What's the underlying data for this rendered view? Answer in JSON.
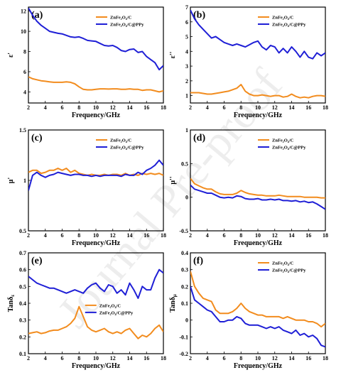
{
  "watermark_text": "Journal Pre-proof",
  "series_colors": {
    "orange": "#f28c1e",
    "blue": "#1f1fd6"
  },
  "chart_data": [
    {
      "type": "line",
      "panel_label": "(a)",
      "xlabel": "Frequency/GHz",
      "ylabel": "ε'",
      "xlim": [
        2,
        18
      ],
      "ylim": [
        2.9,
        12.4
      ],
      "xticks": [
        2,
        4,
        6,
        8,
        10,
        12,
        14,
        16,
        18
      ],
      "yticks": [
        4,
        6,
        8,
        10,
        12
      ],
      "legend_position": "top-right",
      "series": [
        {
          "name": "ZnFe₂O₄/C",
          "color": "#f28c1e",
          "x": [
            2.0,
            2.5,
            3.0,
            3.5,
            4.0,
            4.5,
            5.0,
            5.5,
            6.0,
            6.5,
            7.0,
            7.5,
            8.0,
            8.5,
            9.0,
            9.5,
            10.0,
            10.5,
            11.0,
            11.5,
            12.0,
            12.5,
            13.0,
            13.5,
            14.0,
            14.5,
            15.0,
            15.5,
            16.0,
            16.5,
            17.0,
            17.5,
            18.0
          ],
          "y": [
            5.5,
            5.3,
            5.2,
            5.1,
            5.05,
            5.0,
            4.95,
            4.95,
            4.95,
            5.0,
            4.95,
            4.8,
            4.5,
            4.25,
            4.2,
            4.2,
            4.25,
            4.3,
            4.3,
            4.28,
            4.3,
            4.3,
            4.25,
            4.25,
            4.3,
            4.25,
            4.25,
            4.15,
            4.2,
            4.2,
            4.1,
            4.0,
            4.1
          ]
        },
        {
          "name": "ZnFe₂O₄/C@PPy",
          "color": "#1f1fd6",
          "x": [
            2.0,
            2.5,
            3.0,
            3.5,
            4.0,
            4.5,
            5.0,
            5.5,
            6.0,
            6.5,
            7.0,
            7.5,
            8.0,
            8.5,
            9.0,
            9.5,
            10.0,
            10.5,
            11.0,
            11.5,
            12.0,
            12.5,
            13.0,
            13.5,
            14.0,
            14.5,
            15.0,
            15.5,
            16.0,
            16.5,
            17.0,
            17.5,
            18.0
          ],
          "y": [
            12.3,
            11.6,
            11.0,
            10.6,
            10.3,
            10.0,
            9.9,
            9.8,
            9.75,
            9.6,
            9.45,
            9.4,
            9.45,
            9.3,
            9.1,
            9.05,
            9.0,
            8.8,
            8.6,
            8.55,
            8.6,
            8.4,
            8.1,
            8.0,
            8.2,
            8.25,
            7.9,
            8.0,
            7.5,
            7.2,
            6.9,
            6.2,
            6.6
          ]
        }
      ]
    },
    {
      "type": "line",
      "panel_label": "(b)",
      "xlabel": "Frequency/GHz",
      "ylabel": "ε''",
      "xlim": [
        2,
        18
      ],
      "ylim": [
        0.5,
        7
      ],
      "xticks": [
        2,
        4,
        6,
        8,
        10,
        12,
        14,
        16,
        18
      ],
      "yticks": [
        1,
        2,
        3,
        4,
        5,
        6,
        7
      ],
      "legend_position": "top-right",
      "series": [
        {
          "name": "ZnFe₂O₄/C",
          "color": "#f28c1e",
          "x": [
            2.0,
            2.5,
            3.0,
            3.5,
            4.0,
            4.5,
            5.0,
            5.5,
            6.0,
            6.5,
            7.0,
            7.5,
            8.0,
            8.5,
            9.0,
            9.5,
            10.0,
            10.5,
            11.0,
            11.5,
            12.0,
            12.5,
            13.0,
            13.5,
            14.0,
            14.5,
            15.0,
            15.5,
            16.0,
            16.5,
            17.0,
            17.5,
            18.0
          ],
          "y": [
            1.2,
            1.2,
            1.2,
            1.15,
            1.1,
            1.1,
            1.15,
            1.2,
            1.25,
            1.3,
            1.4,
            1.5,
            1.75,
            1.3,
            1.1,
            1.0,
            1.0,
            1.05,
            1.0,
            0.95,
            1.0,
            1.0,
            0.9,
            0.95,
            1.1,
            0.95,
            0.85,
            0.9,
            0.85,
            0.95,
            1.0,
            1.0,
            0.95
          ]
        },
        {
          "name": "ZnFe₂O₄/C@PPy",
          "color": "#1f1fd6",
          "x": [
            2.0,
            2.5,
            3.0,
            3.5,
            4.0,
            4.5,
            5.0,
            5.5,
            6.0,
            6.5,
            7.0,
            7.5,
            8.0,
            8.5,
            9.0,
            9.5,
            10.0,
            10.5,
            11.0,
            11.5,
            12.0,
            12.5,
            13.0,
            13.5,
            14.0,
            14.5,
            15.0,
            15.5,
            16.0,
            16.5,
            17.0,
            17.5,
            18.0
          ],
          "y": [
            6.8,
            6.2,
            5.8,
            5.5,
            5.2,
            4.9,
            5.0,
            4.8,
            4.6,
            4.5,
            4.4,
            4.5,
            4.4,
            4.3,
            4.45,
            4.6,
            4.7,
            4.3,
            4.1,
            4.4,
            4.3,
            3.9,
            4.2,
            3.9,
            4.3,
            4.0,
            3.6,
            4.0,
            3.6,
            3.5,
            3.9,
            3.7,
            3.9
          ]
        }
      ]
    },
    {
      "type": "line",
      "panel_label": "(c)",
      "xlabel": "Frequency/GHz",
      "ylabel": "μ'",
      "xlim": [
        2,
        18
      ],
      "ylim": [
        0.5,
        1.5
      ],
      "xticks": [
        2,
        4,
        6,
        8,
        10,
        12,
        14,
        16,
        18
      ],
      "yticks": [
        0.5,
        1.0,
        1.5
      ],
      "legend_position": "top-right",
      "series": [
        {
          "name": "ZnFe₂O₄/C",
          "color": "#f28c1e",
          "x": [
            2.0,
            2.5,
            3.0,
            3.5,
            4.0,
            4.5,
            5.0,
            5.5,
            6.0,
            6.5,
            7.0,
            7.5,
            8.0,
            8.5,
            9.0,
            9.5,
            10.0,
            10.5,
            11.0,
            11.5,
            12.0,
            12.5,
            13.0,
            13.5,
            14.0,
            14.5,
            15.0,
            15.5,
            16.0,
            16.5,
            17.0,
            17.5,
            18.0
          ],
          "y": [
            1.08,
            1.1,
            1.1,
            1.07,
            1.08,
            1.1,
            1.1,
            1.12,
            1.1,
            1.12,
            1.08,
            1.1,
            1.07,
            1.06,
            1.05,
            1.06,
            1.05,
            1.05,
            1.06,
            1.05,
            1.06,
            1.06,
            1.05,
            1.07,
            1.05,
            1.06,
            1.05,
            1.07,
            1.06,
            1.07,
            1.06,
            1.07,
            1.05
          ]
        },
        {
          "name": "ZnFe₂O₄/C@PPy",
          "color": "#1f1fd6",
          "x": [
            2.0,
            2.5,
            3.0,
            3.5,
            4.0,
            4.5,
            5.0,
            5.5,
            6.0,
            6.5,
            7.0,
            7.5,
            8.0,
            8.5,
            9.0,
            9.5,
            10.0,
            10.5,
            11.0,
            11.5,
            12.0,
            12.5,
            13.0,
            13.5,
            14.0,
            14.5,
            15.0,
            15.5,
            16.0,
            16.5,
            17.0,
            17.5,
            18.0
          ],
          "y": [
            0.9,
            1.05,
            1.08,
            1.05,
            1.03,
            1.05,
            1.06,
            1.08,
            1.07,
            1.06,
            1.05,
            1.06,
            1.06,
            1.05,
            1.05,
            1.04,
            1.05,
            1.04,
            1.05,
            1.05,
            1.05,
            1.05,
            1.04,
            1.06,
            1.05,
            1.05,
            1.08,
            1.06,
            1.1,
            1.12,
            1.15,
            1.2,
            1.15
          ]
        }
      ]
    },
    {
      "type": "line",
      "panel_label": "(d)",
      "xlabel": "Frequency/GHz",
      "ylabel": "μ''",
      "xlim": [
        2,
        18
      ],
      "ylim": [
        -0.5,
        1.0
      ],
      "xticks": [
        2,
        4,
        6,
        8,
        10,
        12,
        14,
        16,
        18
      ],
      "yticks": [
        -0.5,
        0.0,
        0.5,
        1.0
      ],
      "legend_position": "top-right",
      "series": [
        {
          "name": "ZnFe₂O₄/C",
          "color": "#f28c1e",
          "x": [
            2.0,
            2.5,
            3.0,
            3.5,
            4.0,
            4.5,
            5.0,
            5.5,
            6.0,
            6.5,
            7.0,
            7.5,
            8.0,
            8.5,
            9.0,
            9.5,
            10.0,
            10.5,
            11.0,
            11.5,
            12.0,
            12.5,
            13.0,
            13.5,
            14.0,
            14.5,
            15.0,
            15.5,
            16.0,
            16.5,
            17.0,
            17.5,
            18.0
          ],
          "y": [
            0.28,
            0.2,
            0.17,
            0.14,
            0.12,
            0.12,
            0.08,
            0.05,
            0.04,
            0.04,
            0.04,
            0.06,
            0.1,
            0.07,
            0.05,
            0.04,
            0.03,
            0.03,
            0.02,
            0.02,
            0.02,
            0.03,
            0.02,
            0.01,
            0.01,
            0.01,
            0.01,
            0.0,
            0.0,
            0.0,
            0.0,
            -0.01,
            -0.01
          ]
        },
        {
          "name": "ZnFe₂O₄/C@PPy",
          "color": "#1f1fd6",
          "x": [
            2.0,
            2.5,
            3.0,
            3.5,
            4.0,
            4.5,
            5.0,
            5.5,
            6.0,
            6.5,
            7.0,
            7.5,
            8.0,
            8.5,
            9.0,
            9.5,
            10.0,
            10.5,
            11.0,
            11.5,
            12.0,
            12.5,
            13.0,
            13.5,
            14.0,
            14.5,
            15.0,
            15.5,
            16.0,
            16.5,
            17.0,
            17.5,
            18.0
          ],
          "y": [
            0.18,
            0.12,
            0.1,
            0.08,
            0.06,
            0.06,
            0.03,
            0.0,
            -0.01,
            0.0,
            -0.01,
            0.02,
            0.01,
            -0.02,
            -0.03,
            -0.03,
            -0.02,
            -0.04,
            -0.04,
            -0.03,
            -0.04,
            -0.03,
            -0.05,
            -0.05,
            -0.06,
            -0.05,
            -0.07,
            -0.06,
            -0.08,
            -0.07,
            -0.1,
            -0.14,
            -0.18
          ]
        }
      ]
    },
    {
      "type": "line",
      "panel_label": "(e)",
      "xlabel": "Frequency/GHz",
      "ylabel": "Tanδε",
      "xlim": [
        2,
        18
      ],
      "ylim": [
        0.1,
        0.7
      ],
      "xticks": [
        2,
        4,
        6,
        8,
        10,
        12,
        14,
        16,
        18
      ],
      "yticks": [
        0.1,
        0.2,
        0.3,
        0.4,
        0.5,
        0.6,
        0.7
      ],
      "legend_position": "center-right",
      "series": [
        {
          "name": "ZnFe₂O₄/C",
          "color": "#f28c1e",
          "x": [
            2.0,
            2.5,
            3.0,
            3.5,
            4.0,
            4.5,
            5.0,
            5.5,
            6.0,
            6.5,
            7.0,
            7.5,
            8.0,
            8.5,
            9.0,
            9.5,
            10.0,
            10.5,
            11.0,
            11.5,
            12.0,
            12.5,
            13.0,
            13.5,
            14.0,
            14.5,
            15.0,
            15.5,
            16.0,
            16.5,
            17.0,
            17.5,
            18.0
          ],
          "y": [
            0.22,
            0.225,
            0.23,
            0.22,
            0.225,
            0.235,
            0.24,
            0.24,
            0.25,
            0.26,
            0.28,
            0.31,
            0.38,
            0.32,
            0.26,
            0.24,
            0.23,
            0.24,
            0.25,
            0.23,
            0.22,
            0.23,
            0.22,
            0.24,
            0.25,
            0.22,
            0.19,
            0.21,
            0.2,
            0.22,
            0.25,
            0.27,
            0.23
          ]
        },
        {
          "name": "ZnFe₂O₄/C@PPy",
          "color": "#1f1fd6",
          "x": [
            2.0,
            2.5,
            3.0,
            3.5,
            4.0,
            4.5,
            5.0,
            5.5,
            6.0,
            6.5,
            7.0,
            7.5,
            8.0,
            8.5,
            9.0,
            9.5,
            10.0,
            10.5,
            11.0,
            11.5,
            12.0,
            12.5,
            13.0,
            13.5,
            14.0,
            14.5,
            15.0,
            15.5,
            16.0,
            16.5,
            17.0,
            17.5,
            18.0
          ],
          "y": [
            0.56,
            0.54,
            0.52,
            0.51,
            0.5,
            0.49,
            0.49,
            0.48,
            0.47,
            0.46,
            0.47,
            0.48,
            0.47,
            0.46,
            0.49,
            0.51,
            0.52,
            0.49,
            0.47,
            0.51,
            0.5,
            0.46,
            0.48,
            0.45,
            0.52,
            0.48,
            0.43,
            0.5,
            0.48,
            0.48,
            0.55,
            0.6,
            0.58
          ]
        }
      ]
    },
    {
      "type": "line",
      "panel_label": "(f)",
      "xlabel": "Frequency/GHz",
      "ylabel": "Tanδμ",
      "xlim": [
        2,
        18
      ],
      "ylim": [
        -0.2,
        0.4
      ],
      "xticks": [
        2,
        4,
        6,
        8,
        10,
        12,
        14,
        16,
        18
      ],
      "yticks": [
        -0.2,
        -0.1,
        0.0,
        0.1,
        0.2,
        0.3,
        0.4
      ],
      "legend_position": "top-right",
      "series": [
        {
          "name": "ZnFe₂O₄/C",
          "color": "#f28c1e",
          "x": [
            2.0,
            2.5,
            3.0,
            3.5,
            4.0,
            4.5,
            5.0,
            5.5,
            6.0,
            6.5,
            7.0,
            7.5,
            8.0,
            8.5,
            9.0,
            9.5,
            10.0,
            10.5,
            11.0,
            11.5,
            12.0,
            12.5,
            13.0,
            13.5,
            14.0,
            14.5,
            15.0,
            15.5,
            16.0,
            16.5,
            17.0,
            17.5,
            18.0
          ],
          "y": [
            0.29,
            0.2,
            0.16,
            0.13,
            0.12,
            0.11,
            0.06,
            0.04,
            0.04,
            0.04,
            0.05,
            0.07,
            0.1,
            0.07,
            0.05,
            0.04,
            0.03,
            0.03,
            0.02,
            0.02,
            0.02,
            0.02,
            0.01,
            0.02,
            0.01,
            0.0,
            0.0,
            0.0,
            -0.01,
            -0.01,
            -0.02,
            -0.04,
            -0.02
          ]
        },
        {
          "name": "ZnFe₂O₄/C@PPy",
          "color": "#1f1fd6",
          "x": [
            2.0,
            2.5,
            3.0,
            3.5,
            4.0,
            4.5,
            5.0,
            5.5,
            6.0,
            6.5,
            7.0,
            7.5,
            8.0,
            8.5,
            9.0,
            9.5,
            10.0,
            10.5,
            11.0,
            11.5,
            12.0,
            12.5,
            13.0,
            13.5,
            14.0,
            14.5,
            15.0,
            15.5,
            16.0,
            16.5,
            17.0,
            17.5,
            18.0
          ],
          "y": [
            0.2,
            0.12,
            0.1,
            0.08,
            0.06,
            0.05,
            0.02,
            -0.01,
            -0.01,
            0.0,
            0.0,
            0.02,
            0.01,
            -0.02,
            -0.03,
            -0.03,
            -0.03,
            -0.04,
            -0.05,
            -0.04,
            -0.05,
            -0.04,
            -0.06,
            -0.07,
            -0.08,
            -0.06,
            -0.09,
            -0.08,
            -0.1,
            -0.09,
            -0.11,
            -0.15,
            -0.16
          ]
        }
      ]
    }
  ]
}
